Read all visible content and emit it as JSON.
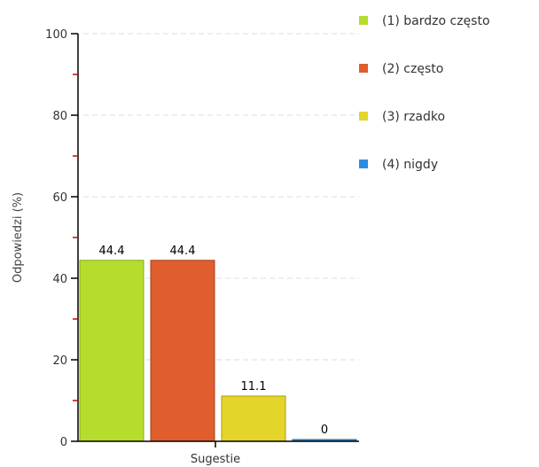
{
  "chart_data": {
    "type": "bar",
    "categories": [
      "Sugestie"
    ],
    "series": [
      {
        "name": "(1) bardzo często",
        "values": [
          44.4
        ],
        "color": "#b6dc2e",
        "border": "#8aaa14",
        "label": "44.4"
      },
      {
        "name": "(2) często",
        "values": [
          44.4
        ],
        "color": "#e05e2e",
        "border": "#a8401a",
        "label": "44.4"
      },
      {
        "name": "(3) rzadko",
        "values": [
          11.1
        ],
        "color": "#e4d52a",
        "border": "#aa9c10",
        "label": "11.1"
      },
      {
        "name": "(4) nigdy",
        "values": [
          0
        ],
        "color": "#2a8ee0",
        "border": "#1a6ab0",
        "label": "0"
      }
    ],
    "ylabel": "Odpowiedzi (%)",
    "xlabel": "Sugestie",
    "ylim": [
      0,
      100
    ],
    "yticks": [
      0,
      20,
      40,
      60,
      80,
      100
    ],
    "ytick_labels": [
      "0",
      "20",
      "40",
      "60",
      "80",
      "100"
    ],
    "grid": true,
    "legend_position": "top-right"
  }
}
